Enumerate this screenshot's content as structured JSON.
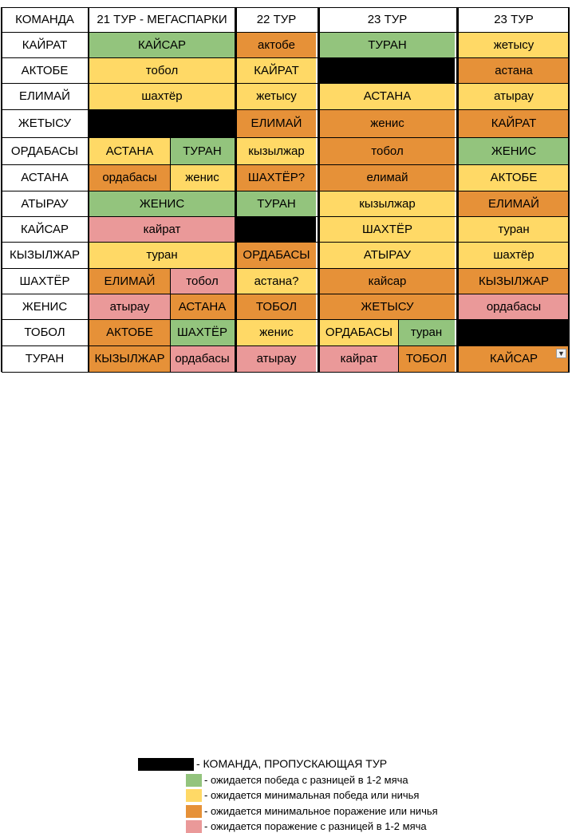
{
  "colors": {
    "green": "#93c47d",
    "yellow": "#ffd966",
    "orange": "#e69138",
    "pink": "#ea9999",
    "black": "#000000",
    "white": "#ffffff"
  },
  "headers": [
    "КОМАНДА",
    "21 ТУР - МЕГАСПАРКИ",
    "22 ТУР",
    "23 ТУР",
    "23 ТУР"
  ],
  "rows": [
    {
      "team": "КАЙРАТ",
      "t21": [
        {
          "text": "КАЙСАР",
          "color": "green",
          "span": 2
        }
      ],
      "t22": {
        "text": "актобе",
        "color": "orange"
      },
      "t23a": [
        {
          "text": "ТУРАН",
          "color": "green",
          "span": 2
        }
      ],
      "t23b": {
        "text": "жетысу",
        "color": "yellow"
      }
    },
    {
      "team": "АКТОБЕ",
      "t21": [
        {
          "text": "тобол",
          "color": "yellow",
          "span": 2
        }
      ],
      "t22": {
        "text": "КАЙРАТ",
        "color": "yellow"
      },
      "t23a": [
        {
          "text": "",
          "color": "black",
          "span": 2
        }
      ],
      "t23b": {
        "text": "астана",
        "color": "orange"
      }
    },
    {
      "team": "ЕЛИМАЙ",
      "t21": [
        {
          "text": "шахтёр",
          "color": "yellow",
          "span": 2
        }
      ],
      "t22": {
        "text": "жетысу",
        "color": "yellow"
      },
      "t23a": [
        {
          "text": "АСТАНА",
          "color": "yellow",
          "span": 2
        }
      ],
      "t23b": {
        "text": "атырау",
        "color": "yellow"
      }
    },
    {
      "team": "ЖЕТЫСУ",
      "t21": [
        {
          "text": "",
          "color": "black",
          "span": 2
        }
      ],
      "t22": {
        "text": "ЕЛИМАЙ",
        "color": "orange"
      },
      "t23a": [
        {
          "text": "женис",
          "color": "orange",
          "span": 2
        }
      ],
      "t23b": {
        "text": "КАЙРАТ",
        "color": "orange"
      }
    },
    {
      "team": "ОРДАБАСЫ",
      "t21": [
        {
          "text": "АСТАНА",
          "color": "yellow",
          "span": 1
        },
        {
          "text": "ТУРАН",
          "color": "green",
          "span": 1
        }
      ],
      "t22": {
        "text": "кызылжар",
        "color": "yellow"
      },
      "t23a": [
        {
          "text": "тобол",
          "color": "orange",
          "span": 2
        }
      ],
      "t23b": {
        "text": "ЖЕНИС",
        "color": "green"
      }
    },
    {
      "team": "АСТАНА",
      "t21": [
        {
          "text": "ордабасы",
          "color": "orange",
          "span": 1
        },
        {
          "text": "женис",
          "color": "yellow",
          "span": 1
        }
      ],
      "t22": {
        "text": "ШАХТЁР?",
        "color": "orange"
      },
      "t23a": [
        {
          "text": "елимай",
          "color": "orange",
          "span": 2
        }
      ],
      "t23b": {
        "text": "АКТОБЕ",
        "color": "yellow"
      }
    },
    {
      "team": "АТЫРАУ",
      "t21": [
        {
          "text": "ЖЕНИС",
          "color": "green",
          "span": 2
        }
      ],
      "t22": {
        "text": "ТУРАН",
        "color": "green"
      },
      "t23a": [
        {
          "text": "кызылжар",
          "color": "yellow",
          "span": 2
        }
      ],
      "t23b": {
        "text": "ЕЛИМАЙ",
        "color": "orange"
      }
    },
    {
      "team": "КАЙСАР",
      "t21": [
        {
          "text": "кайрат",
          "color": "pink",
          "span": 2
        }
      ],
      "t22": {
        "text": "",
        "color": "black"
      },
      "t23a": [
        {
          "text": "ШАХТЁР",
          "color": "yellow",
          "span": 2
        }
      ],
      "t23b": {
        "text": "туран",
        "color": "yellow"
      }
    },
    {
      "team": "КЫЗЫЛЖАР",
      "t21": [
        {
          "text": "туран",
          "color": "yellow",
          "span": 2
        }
      ],
      "t22": {
        "text": "ОРДАБАСЫ",
        "color": "orange"
      },
      "t23a": [
        {
          "text": "АТЫРАУ",
          "color": "yellow",
          "span": 2
        }
      ],
      "t23b": {
        "text": "шахтёр",
        "color": "yellow"
      }
    },
    {
      "team": "ШАХТЁР",
      "t21": [
        {
          "text": "ЕЛИМАЙ",
          "color": "orange",
          "span": 1
        },
        {
          "text": "тобол",
          "color": "pink",
          "span": 1
        }
      ],
      "t22": {
        "text": "астана?",
        "color": "yellow"
      },
      "t23a": [
        {
          "text": "кайсар",
          "color": "orange",
          "span": 2
        }
      ],
      "t23b": {
        "text": "КЫЗЫЛЖАР",
        "color": "orange"
      }
    },
    {
      "team": "ЖЕНИС",
      "t21": [
        {
          "text": "атырау",
          "color": "pink",
          "span": 1
        },
        {
          "text": "АСТАНА",
          "color": "orange",
          "span": 1
        }
      ],
      "t22": {
        "text": "ТОБОЛ",
        "color": "orange"
      },
      "t23a": [
        {
          "text": "ЖЕТЫСУ",
          "color": "orange",
          "span": 2
        }
      ],
      "t23b": {
        "text": "ордабасы",
        "color": "pink"
      }
    },
    {
      "team": "ТОБОЛ",
      "t21": [
        {
          "text": "АКТОБЕ",
          "color": "orange",
          "span": 1
        },
        {
          "text": "ШАХТЁР",
          "color": "green",
          "span": 1
        }
      ],
      "t22": {
        "text": "женис",
        "color": "yellow"
      },
      "t23a": [
        {
          "text": "ОРДАБАСЫ",
          "color": "yellow",
          "span": 1
        },
        {
          "text": "туран",
          "color": "green",
          "span": 1
        }
      ],
      "t23b": {
        "text": "",
        "color": "black"
      }
    },
    {
      "team": "ТУРАН",
      "t21": [
        {
          "text": "КЫЗЫЛЖАР",
          "color": "orange",
          "span": 1
        },
        {
          "text": "ордабасы",
          "color": "pink",
          "span": 1
        }
      ],
      "t22": {
        "text": "атырау",
        "color": "pink"
      },
      "t23a": [
        {
          "text": "кайрат",
          "color": "pink",
          "span": 1
        },
        {
          "text": "ТОБОЛ",
          "color": "orange",
          "span": 1
        }
      ],
      "t23b": {
        "text": "КАЙСАР",
        "color": "orange"
      }
    }
  ],
  "dropdown_icon": "dropdown-arrow-icon",
  "legend": {
    "black": "- КОМАНДА, ПРОПУСКАЮЩАЯ ТУР",
    "green": "- ожидается победа с разницей в 1-2 мяча",
    "yellow": "- ожидается минимальная победа или ничья",
    "orange": "- ожидается минимальное поражение или ничья",
    "pink": "- ожидается поражение с разницей в 1-2 мяча"
  }
}
